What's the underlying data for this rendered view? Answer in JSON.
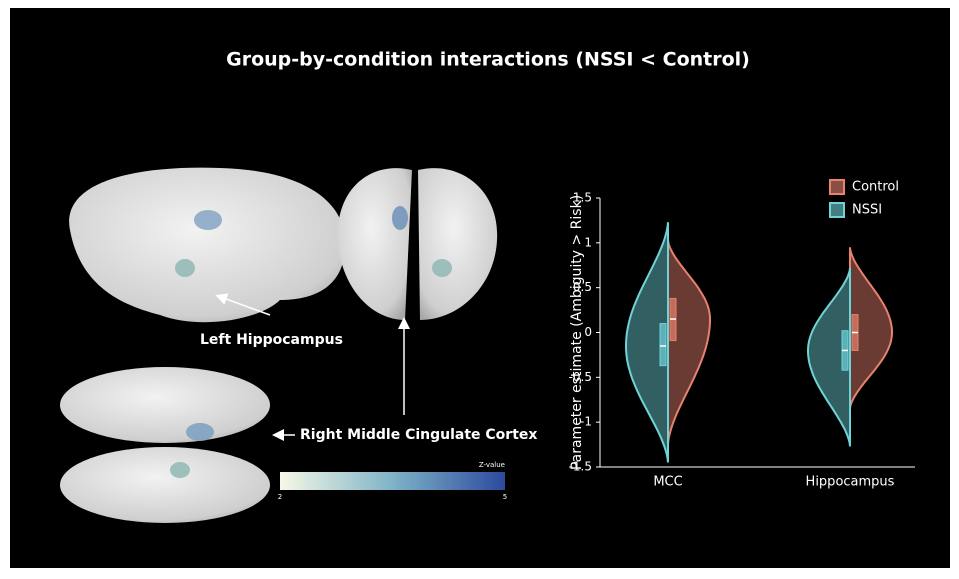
{
  "chart_data": {
    "type": "violin",
    "title": "Group-by-condition interactions (NSSI < Control)",
    "ylabel": "Parameter estimate (Ambiguity > Risk)",
    "categories": [
      "MCC",
      "Hippocampus"
    ],
    "ylim": [
      -1.5,
      1.5
    ],
    "yticks": [
      -1.5,
      -1,
      -0.5,
      0,
      0.5,
      1,
      1.5
    ],
    "legend": "top-right",
    "series": [
      {
        "name": "Control",
        "color": "#e8826e",
        "side": "right",
        "min": [
          -1.25,
          -0.85
        ],
        "q1": [
          -0.09,
          -0.2
        ],
        "median": [
          0.15,
          0
        ],
        "q3": [
          0.38,
          0.2
        ],
        "max": [
          1.03,
          0.95
        ]
      },
      {
        "name": "NSSI",
        "color": "#6fd3d8",
        "side": "left",
        "min": [
          -1.45,
          -1.27
        ],
        "q1": [
          -0.37,
          -0.42
        ],
        "median": [
          -0.15,
          -0.2
        ],
        "q3": [
          0.1,
          0.02
        ],
        "max": [
          1.23,
          0.72
        ]
      }
    ],
    "annotations": [
      "Left Hippocampus",
      "Right Middle Cingulate Cortex"
    ],
    "colorbar": {
      "label": "Z-value",
      "lim": [
        2,
        5
      ],
      "ticks": [
        2,
        5
      ],
      "colors": [
        "#f5f8e6",
        "#7fb3c8",
        "#2c4a9e"
      ]
    }
  }
}
